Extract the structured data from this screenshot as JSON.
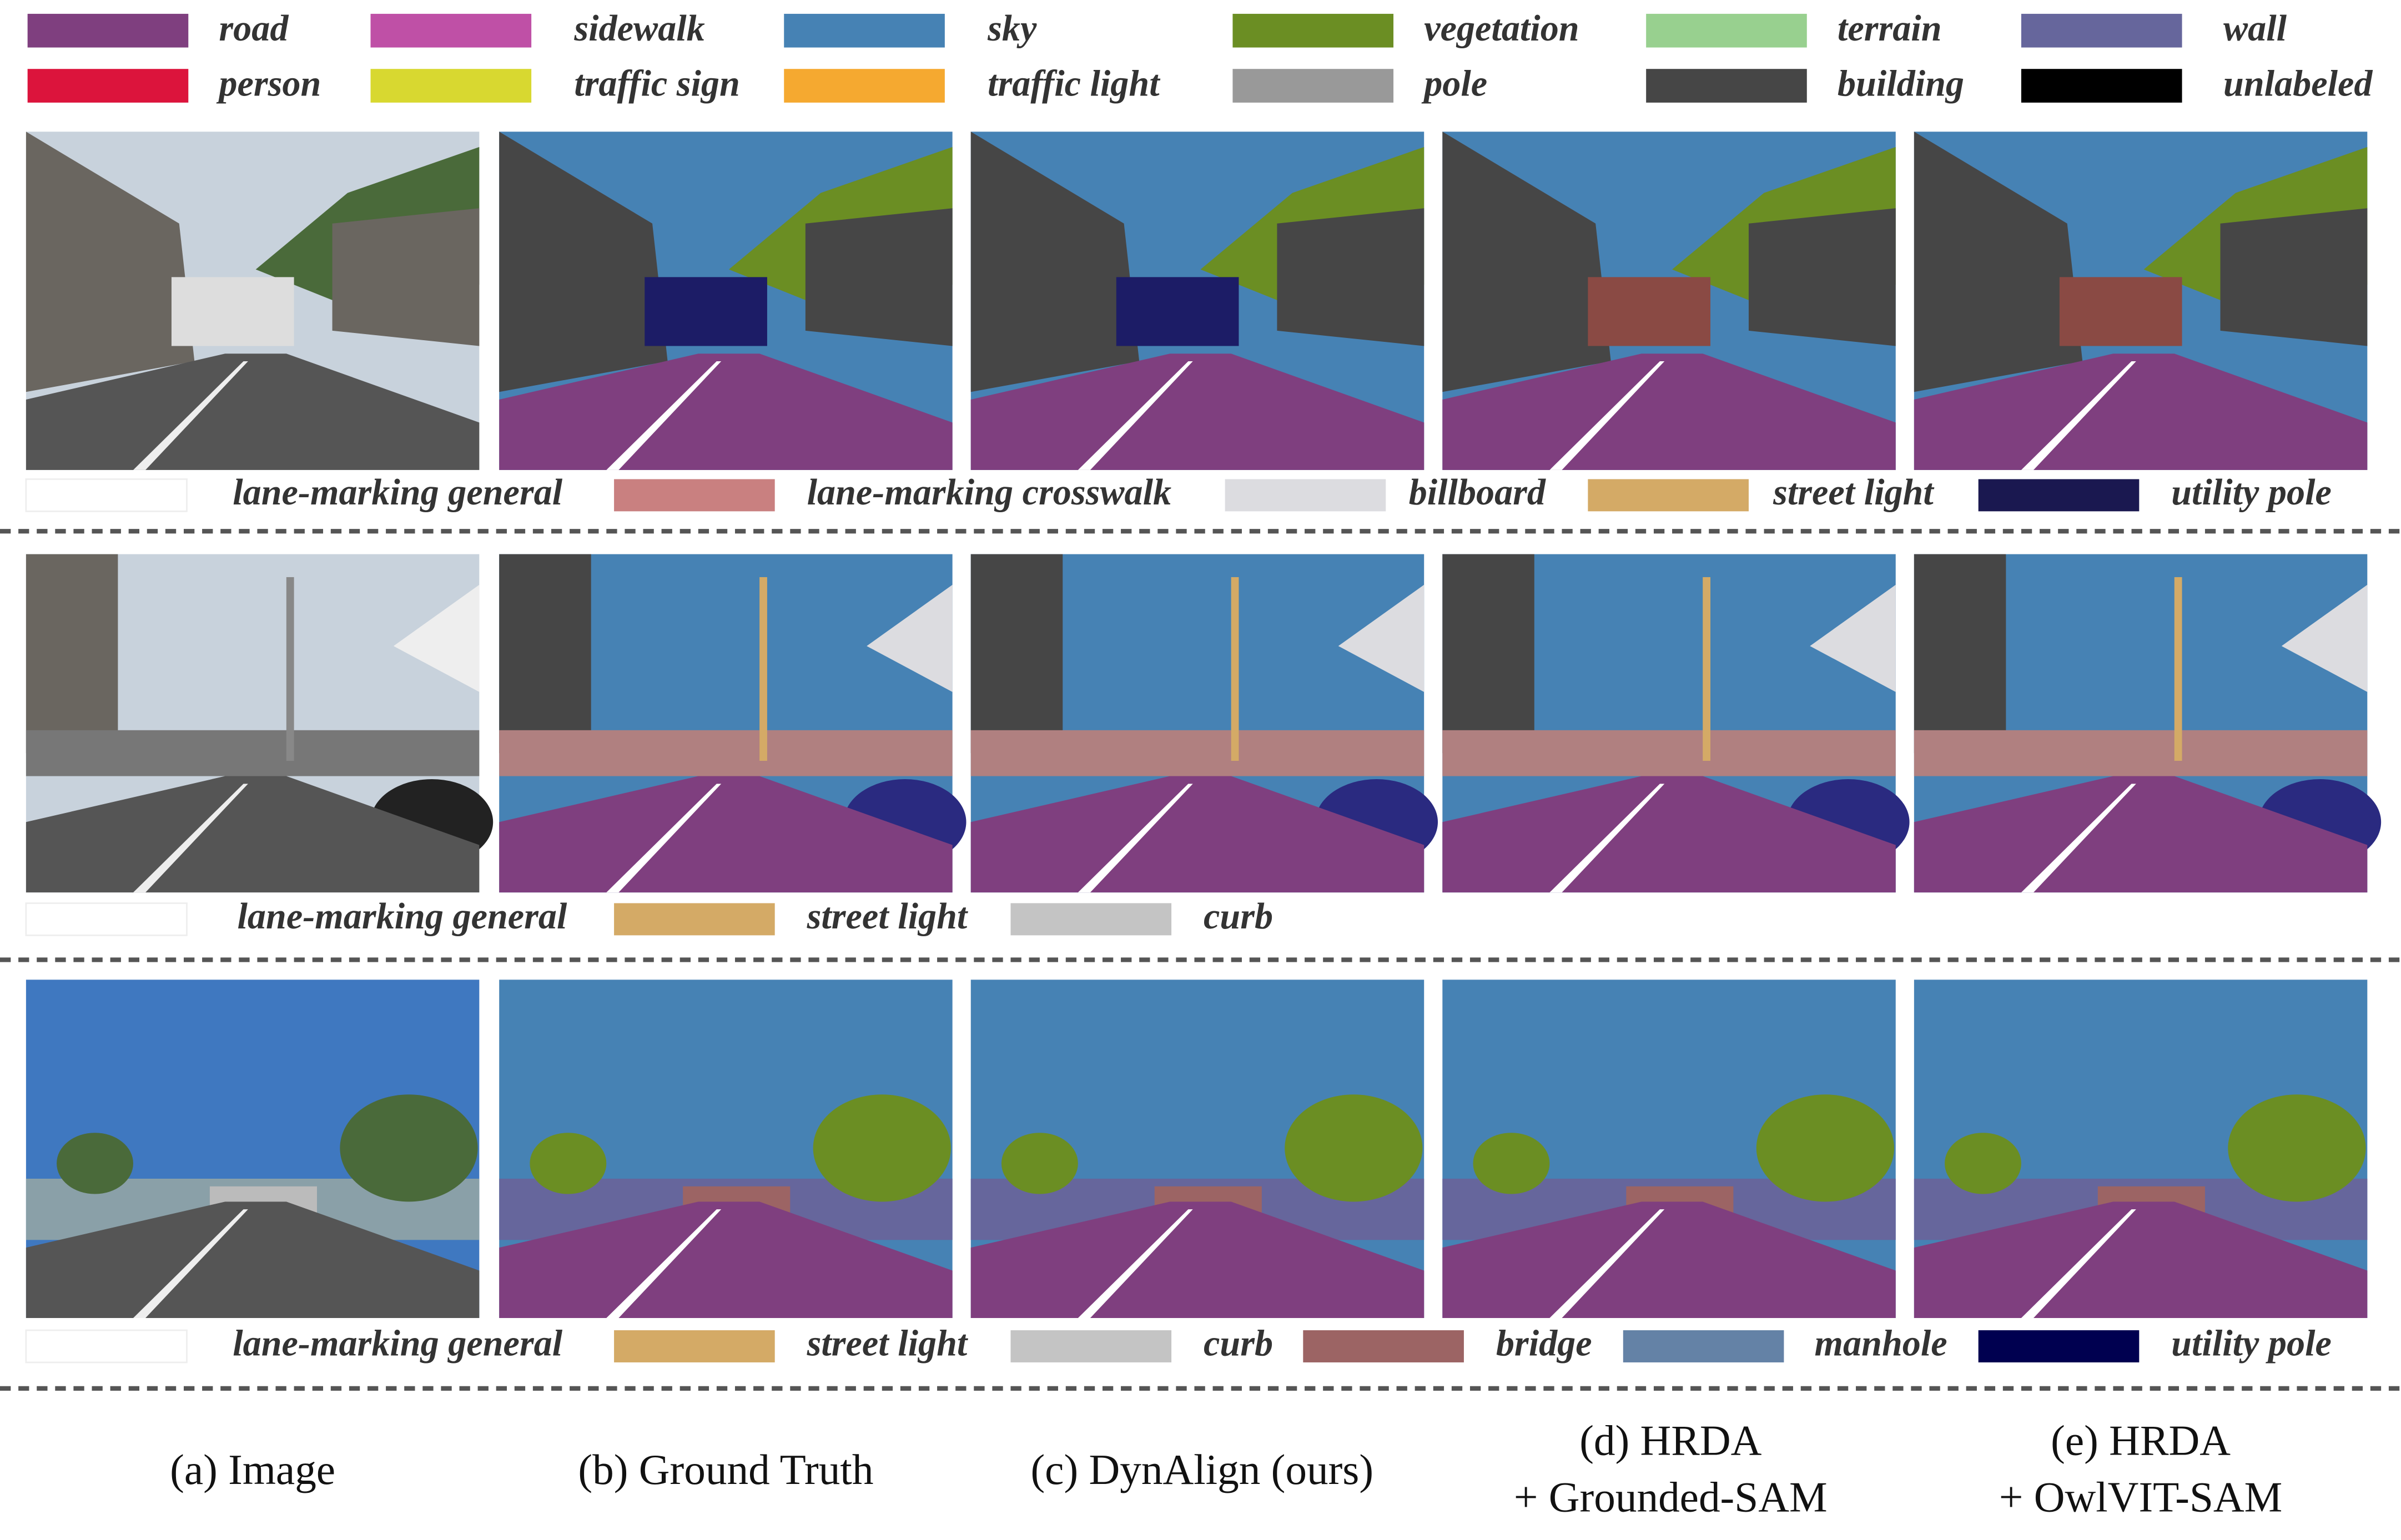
{
  "legend": [
    {
      "label": "road",
      "color": "#7f3f7f"
    },
    {
      "label": "sidewalk",
      "color": "#bf50a6"
    },
    {
      "label": "sky",
      "color": "#4682b4"
    },
    {
      "label": "vegetation",
      "color": "#6b8e23"
    },
    {
      "label": "terrain",
      "color": "#98d08f"
    },
    {
      "label": "wall",
      "color": "#66669c"
    },
    {
      "label": "person",
      "color": "#dc143c"
    },
    {
      "label": "traffic sign",
      "color": "#d8d830"
    },
    {
      "label": "traffic light",
      "color": "#f5a930"
    },
    {
      "label": "pole",
      "color": "#999999"
    },
    {
      "label": "building",
      "color": "#464646"
    },
    {
      "label": "unlabeled",
      "color": "#000000"
    }
  ],
  "rows": [
    {
      "legend": [
        {
          "label": "lane-marking general",
          "color": "#ffffff"
        },
        {
          "label": "lane-marking crosswalk",
          "color": "#c98080"
        },
        {
          "label": "billboard",
          "color": "#dcdce0"
        },
        {
          "label": "street light",
          "color": "#d4aa66"
        },
        {
          "label": "utility pole",
          "color": "#1a1850"
        }
      ]
    },
    {
      "legend": [
        {
          "label": "lane-marking general",
          "color": "#ffffff"
        },
        {
          "label": "street light",
          "color": "#d4aa66"
        },
        {
          "label": "curb",
          "color": "#c4c4c4"
        }
      ]
    },
    {
      "legend": [
        {
          "label": "lane-marking general",
          "color": "#ffffff"
        },
        {
          "label": "street light",
          "color": "#d4aa66"
        },
        {
          "label": "curb",
          "color": "#c4c4c4"
        },
        {
          "label": "bridge",
          "color": "#9c6464"
        },
        {
          "label": "manhole",
          "color": "#6482a6"
        },
        {
          "label": "utility pole",
          "color": "#000050"
        }
      ]
    }
  ],
  "captions": [
    {
      "lines": [
        "(a) Image"
      ]
    },
    {
      "lines": [
        "(b) Ground Truth"
      ]
    },
    {
      "lines": [
        "(c) DynAlign (ours)"
      ]
    },
    {
      "lines": [
        "(d) HRDA",
        "+  Grounded-SAM"
      ]
    },
    {
      "lines": [
        "(e) HRDA",
        "+  OwlVIT-SAM"
      ]
    }
  ]
}
